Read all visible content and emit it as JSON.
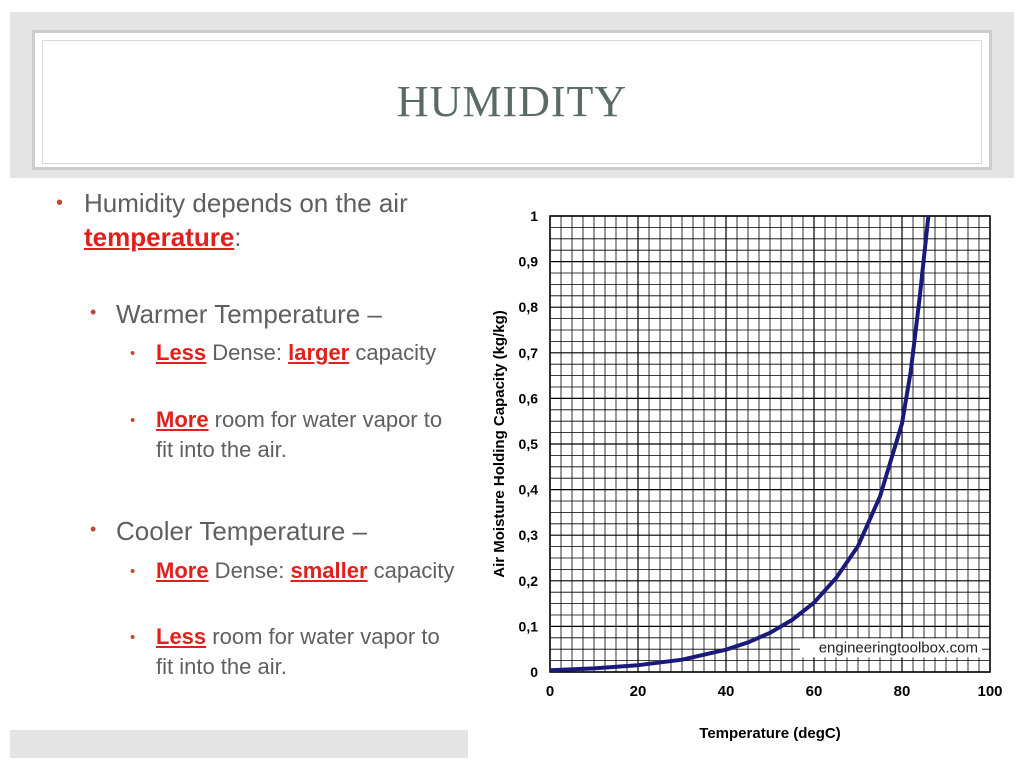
{
  "slide": {
    "title": "HUMIDITY",
    "bullet1": {
      "before": "Humidity depends on the air ",
      "highlight": "temperature",
      "after": ":"
    },
    "warmer": {
      "heading": "Warmer Temperature –",
      "sub1": {
        "h1": "Less",
        "t1": " Dense: ",
        "h2": "larger",
        "t2": " capacity"
      },
      "sub2": {
        "h1": "More",
        "t1": " room for water vapor to fit into the air."
      }
    },
    "cooler": {
      "heading": "Cooler Temperature –",
      "sub1": {
        "h1": "More",
        "t1": " Dense: ",
        "h2": "smaller",
        "t2": " capacity"
      },
      "sub2": {
        "h1": "Less",
        "t1": " room for water vapor to fit into the air."
      }
    }
  },
  "chart_data": {
    "type": "line",
    "xlabel": "Temperature (degC)",
    "ylabel": "Air Moisture Holding Capacity (kg/kg)",
    "xlim": [
      0,
      100
    ],
    "ylim": [
      0,
      1
    ],
    "x_ticks": [
      "0",
      "20",
      "40",
      "60",
      "80",
      "100"
    ],
    "y_ticks": [
      "0",
      "0,1",
      "0,2",
      "0,3",
      "0,4",
      "0,5",
      "0,6",
      "0,7",
      "0,8",
      "0,9",
      "1"
    ],
    "grid": true,
    "watermark": "engineeringtoolbox.com",
    "series": [
      {
        "color": "#1a1a7a",
        "x": [
          0,
          10,
          20,
          30,
          40,
          45,
          50,
          55,
          60,
          65,
          70,
          75,
          80,
          82,
          84,
          86
        ],
        "y": [
          0.004,
          0.008,
          0.015,
          0.027,
          0.049,
          0.065,
          0.086,
          0.114,
          0.152,
          0.206,
          0.276,
          0.385,
          0.545,
          0.66,
          0.82,
          1.0
        ]
      }
    ]
  }
}
